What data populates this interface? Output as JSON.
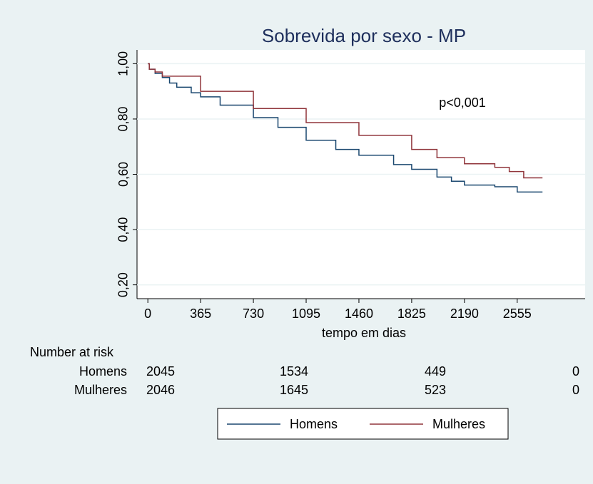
{
  "chart_data": {
    "type": "line",
    "title": "Sobrevida por sexo - MP",
    "x_label": "tempo em dias",
    "annotation": "p<0,001",
    "xlim": [
      -75,
      3025
    ],
    "xticks": [
      0,
      365,
      730,
      1095,
      1460,
      1825,
      2190,
      2555
    ],
    "ylim": [
      0.15,
      1.05
    ],
    "yticks": [
      {
        "value": 0.2,
        "label": "0,20"
      },
      {
        "value": 0.4,
        "label": "0,40"
      },
      {
        "value": 0.6,
        "label": "0,60"
      },
      {
        "value": 0.8,
        "label": "0,80"
      },
      {
        "value": 1.0,
        "label": "1,00"
      }
    ],
    "grid": true,
    "legend": "bottom",
    "series": [
      {
        "name": "Homens",
        "color": "#1a476f",
        "x": [
          0,
          10,
          50,
          100,
          150,
          200,
          300,
          365,
          500,
          730,
          900,
          1095,
          1300,
          1460,
          1700,
          1825,
          2000,
          2100,
          2190,
          2400,
          2555,
          2730
        ],
        "values": [
          1.0,
          0.98,
          0.965,
          0.95,
          0.93,
          0.915,
          0.895,
          0.88,
          0.85,
          0.805,
          0.77,
          0.723,
          0.69,
          0.669,
          0.635,
          0.618,
          0.59,
          0.575,
          0.561,
          0.555,
          0.536,
          0.536
        ]
      },
      {
        "name": "Mulheres",
        "color": "#90353b",
        "x": [
          0,
          10,
          50,
          100,
          365,
          730,
          1095,
          1460,
          1825,
          2000,
          2190,
          2400,
          2500,
          2600,
          2730
        ],
        "values": [
          1.0,
          0.98,
          0.97,
          0.955,
          0.9,
          0.838,
          0.787,
          0.741,
          0.69,
          0.66,
          0.638,
          0.625,
          0.61,
          0.587,
          0.587
        ]
      }
    ],
    "risk_table": {
      "title": "Number at risk",
      "rows": [
        {
          "name": "Homens",
          "values": [
            2045,
            1534,
            449,
            0
          ]
        },
        {
          "name": "Mulheres",
          "values": [
            2046,
            1645,
            523,
            0
          ]
        }
      ]
    }
  }
}
